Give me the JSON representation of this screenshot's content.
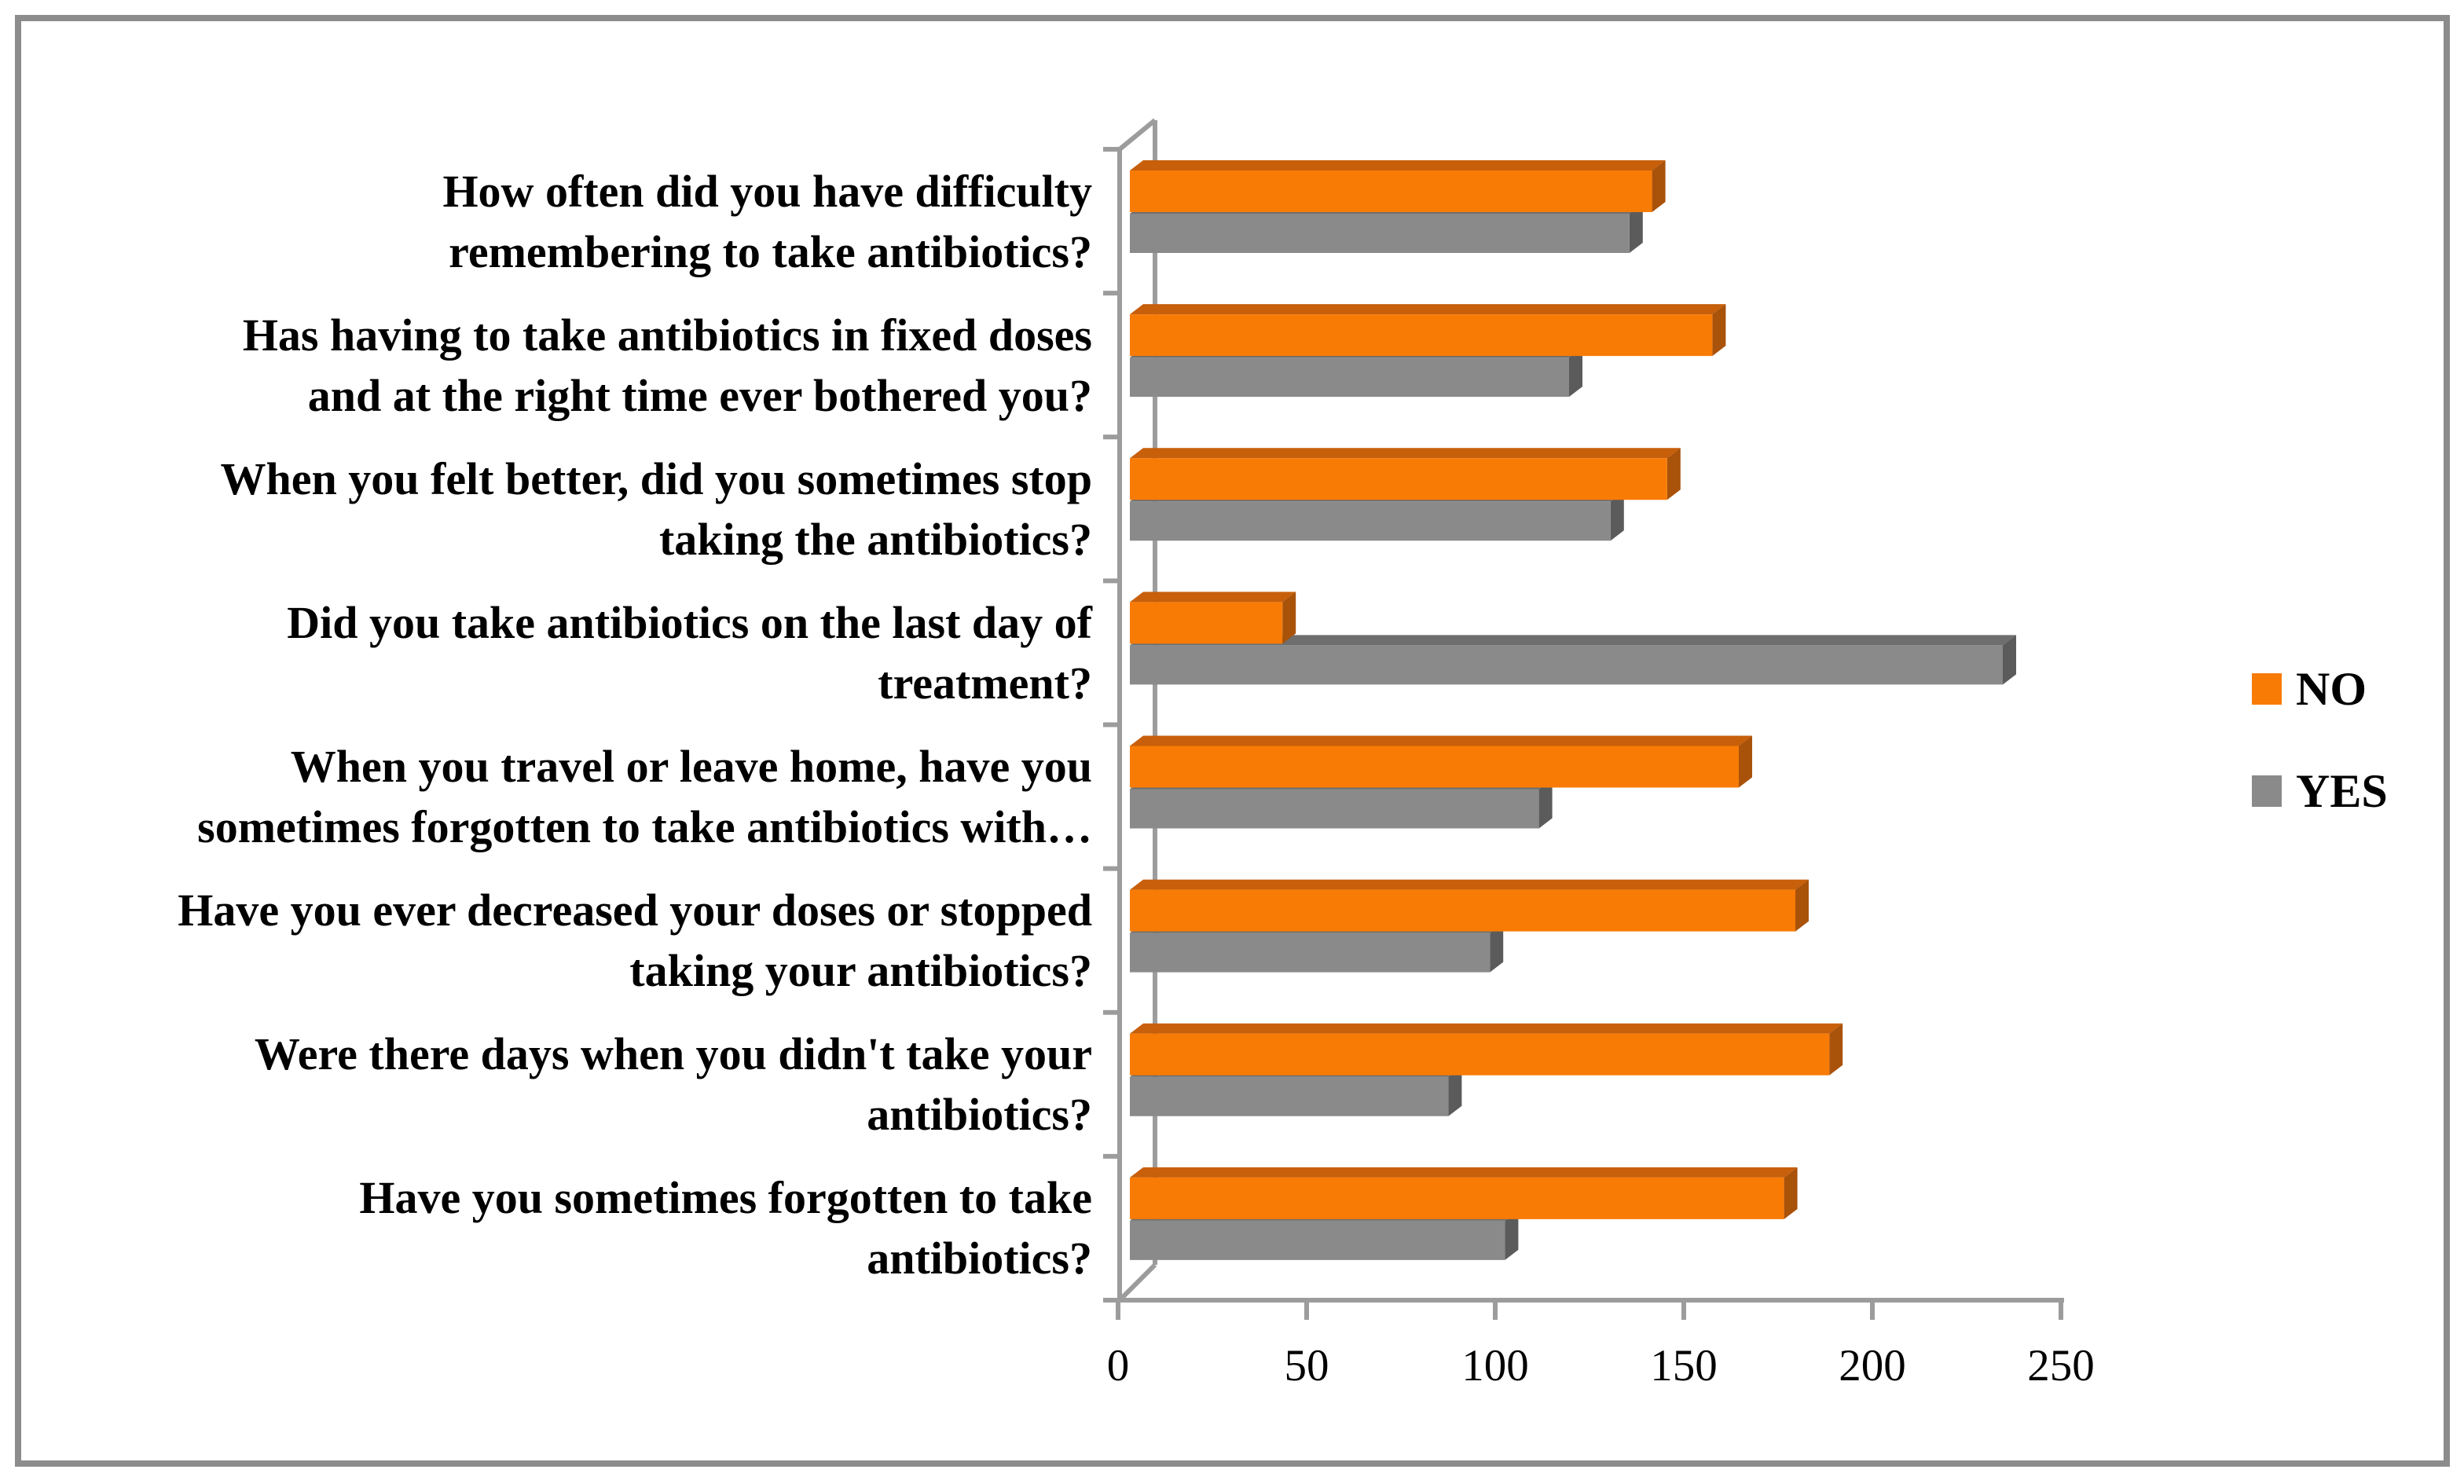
{
  "chart_data": {
    "type": "bar",
    "style": "3d-clustered",
    "orientation": "horizontal",
    "title": "",
    "xlabel": "",
    "ylabel": "",
    "grid": false,
    "categories": [
      "How often did you have difficulty\nremembering to take antibiotics?",
      "Has having to take antibiotics in fixed doses\nand at the right time ever bothered you?",
      "When you felt better, did you sometimes stop\ntaking the antibiotics?",
      "Did you take antibiotics on the last day of\ntreatment?",
      "When you travel or leave home, have you\nsometimes forgotten to take antibiotics with…",
      "Have you ever decreased your doses or stopped\ntaking your antibiotics?",
      "Were there days when you didn't take your\nantibiotics?",
      "Have you sometimes forgotten to take\nantibiotics?"
    ],
    "series": [
      {
        "name": "NO",
        "color": "#F87B05",
        "values": [
          142,
          158,
          146,
          44,
          165,
          180,
          189,
          177
        ]
      },
      {
        "name": "YES",
        "color": "#8A8A8A",
        "values": [
          136,
          120,
          131,
          235,
          112,
          99,
          88,
          103
        ]
      }
    ],
    "x_axis": {
      "range": [
        0,
        250
      ],
      "tick_step": 50,
      "ticks": [
        "0",
        "50",
        "100",
        "150",
        "200",
        "250"
      ]
    },
    "legend_position": "right-middle"
  },
  "colors": {
    "no_face": "#F87B05",
    "no_top": "#C75F0B",
    "no_side": "#A9520A",
    "yes_face": "#8A8A8A",
    "yes_top": "#6E6E6E",
    "yes_side": "#5B5B5B",
    "axis": "#9C9C9C",
    "frame_border": "#8C8C8C",
    "text": "#000000",
    "background": "#FFFFFF"
  }
}
